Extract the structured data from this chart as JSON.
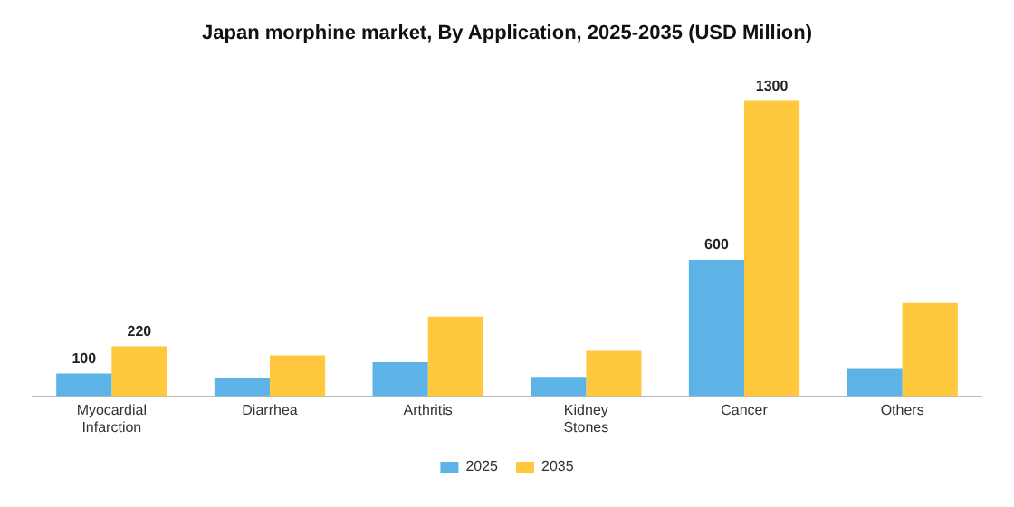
{
  "chart_data": {
    "type": "bar",
    "title": "Japan morphine market, By Application, 2025-2035 (USD Million)",
    "categories": [
      "Myocardial\nInfarction",
      "Diarrhea",
      "Arthritis",
      "Kidney\nStones",
      "Cancer",
      "Others"
    ],
    "series": [
      {
        "name": "2025",
        "color": "#5db3e6",
        "values": [
          100,
          80,
          150,
          85,
          600,
          120
        ],
        "value_labels": [
          "100",
          null,
          null,
          null,
          "600",
          null
        ]
      },
      {
        "name": "2035",
        "color": "#ffc83d",
        "values": [
          220,
          180,
          350,
          200,
          1300,
          410
        ],
        "value_labels": [
          "220",
          null,
          null,
          null,
          "1300",
          null
        ]
      }
    ],
    "legend": "bottom",
    "grid": false
  }
}
